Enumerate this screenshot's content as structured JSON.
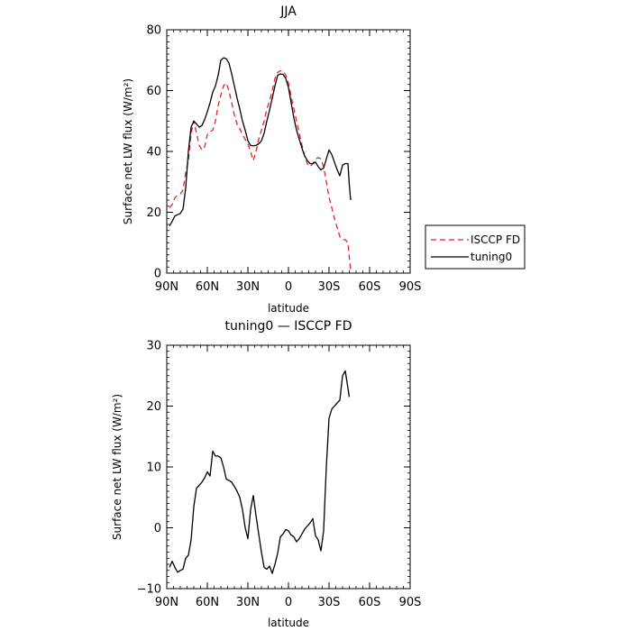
{
  "chart_data": [
    {
      "type": "line",
      "title": "JJA",
      "xlabel": "latitude",
      "ylabel": "Surface net LW flux (W/m²)",
      "xlim": [
        90,
        -90
      ],
      "ylim": [
        0,
        80
      ],
      "x_ticks": [
        90,
        60,
        30,
        0,
        -30,
        -60,
        -90
      ],
      "x_tick_labels": [
        "90N",
        "60N",
        "30N",
        "0",
        "30S",
        "60S",
        "90S"
      ],
      "y_ticks": [
        0,
        20,
        40,
        60,
        80
      ],
      "y_tick_labels": [
        "0",
        "20",
        "40",
        "60",
        "80"
      ],
      "legend": "outside-right",
      "series": [
        {
          "name": "ISCCP FD",
          "color": "#e8202a",
          "dash": "dashed",
          "points": [
            [
              88,
              21.5
            ],
            [
              86,
              22.5
            ],
            [
              84,
              24.8
            ],
            [
              82,
              25.6
            ],
            [
              80,
              26
            ],
            [
              78,
              27.3
            ],
            [
              76,
              33
            ],
            [
              74,
              37
            ],
            [
              72,
              46
            ],
            [
              70,
              50
            ],
            [
              68,
              46
            ],
            [
              66,
              42
            ],
            [
              64,
              40.5
            ],
            [
              62,
              41.5
            ],
            [
              60,
              45.5
            ],
            [
              58,
              46.5
            ],
            [
              56,
              47
            ],
            [
              54,
              50
            ],
            [
              52,
              55
            ],
            [
              50,
              58.5
            ],
            [
              48,
              61.5
            ],
            [
              46,
              62.5
            ],
            [
              44,
              60
            ],
            [
              42,
              56
            ],
            [
              40,
              52
            ],
            [
              38,
              49
            ],
            [
              36,
              47.5
            ],
            [
              34,
              45.5
            ],
            [
              32,
              44
            ],
            [
              30,
              42.5
            ],
            [
              28,
              40
            ],
            [
              26,
              37
            ],
            [
              24,
              40
            ],
            [
              22,
              44
            ],
            [
              20,
              47
            ],
            [
              18,
              50
            ],
            [
              16,
              54
            ],
            [
              14,
              56.5
            ],
            [
              12,
              60
            ],
            [
              10,
              64
            ],
            [
              8,
              66
            ],
            [
              6,
              66.5
            ],
            [
              4,
              66.5
            ],
            [
              2,
              65
            ],
            [
              0,
              62.5
            ],
            [
              -2,
              58
            ],
            [
              -4,
              54
            ],
            [
              -6,
              50
            ],
            [
              -8,
              46
            ],
            [
              -10,
              42
            ],
            [
              -12,
              38.5
            ],
            [
              -14,
              36
            ],
            [
              -16,
              35
            ],
            [
              -18,
              36
            ],
            [
              -20,
              37.5
            ],
            [
              -22,
              38
            ],
            [
              -24,
              37.5
            ],
            [
              -26,
              35
            ],
            [
              -28,
              30
            ],
            [
              -30,
              25
            ],
            [
              -32,
              21.5
            ],
            [
              -34,
              18
            ],
            [
              -36,
              15
            ],
            [
              -38,
              12
            ],
            [
              -40,
              11
            ],
            [
              -42,
              11
            ],
            [
              -44,
              10
            ],
            [
              -45,
              5
            ],
            [
              -46,
              1
            ]
          ]
        },
        {
          "name": "tuning0",
          "color": "#000000",
          "dash": "solid",
          "points": [
            [
              88,
              15.5
            ],
            [
              86,
              17
            ],
            [
              84,
              18.8
            ],
            [
              82,
              19.2
            ],
            [
              80,
              19.6
            ],
            [
              78,
              21
            ],
            [
              76,
              28
            ],
            [
              74,
              40
            ],
            [
              72,
              48
            ],
            [
              70,
              50
            ],
            [
              68,
              49
            ],
            [
              66,
              48
            ],
            [
              64,
              48.5
            ],
            [
              62,
              50.5
            ],
            [
              60,
              53
            ],
            [
              58,
              56
            ],
            [
              56,
              59.5
            ],
            [
              54,
              61.5
            ],
            [
              52,
              65
            ],
            [
              50,
              70
            ],
            [
              48,
              70.8
            ],
            [
              46,
              70.5
            ],
            [
              44,
              69
            ],
            [
              42,
              65.5
            ],
            [
              40,
              61.5
            ],
            [
              38,
              57.5
            ],
            [
              36,
              54
            ],
            [
              34,
              50
            ],
            [
              32,
              47
            ],
            [
              30,
              43.5
            ],
            [
              28,
              42
            ],
            [
              26,
              41.8
            ],
            [
              24,
              42
            ],
            [
              22,
              42.5
            ],
            [
              20,
              43.5
            ],
            [
              18,
              46
            ],
            [
              16,
              50
            ],
            [
              14,
              53.5
            ],
            [
              12,
              57.5
            ],
            [
              10,
              61.5
            ],
            [
              8,
              65
            ],
            [
              6,
              65.5
            ],
            [
              4,
              65.3
            ],
            [
              2,
              64
            ],
            [
              0,
              61
            ],
            [
              -2,
              56
            ],
            [
              -4,
              51
            ],
            [
              -6,
              47
            ],
            [
              -8,
              44
            ],
            [
              -10,
              41
            ],
            [
              -12,
              38.5
            ],
            [
              -14,
              37
            ],
            [
              -16,
              36
            ],
            [
              -18,
              36
            ],
            [
              -20,
              36.5
            ],
            [
              -22,
              35
            ],
            [
              -24,
              34
            ],
            [
              -26,
              34.5
            ],
            [
              -28,
              37.5
            ],
            [
              -30,
              40.5
            ],
            [
              -32,
              39
            ],
            [
              -34,
              36.5
            ],
            [
              -36,
              34
            ],
            [
              -38,
              32
            ],
            [
              -40,
              35.5
            ],
            [
              -42,
              36
            ],
            [
              -44,
              36
            ],
            [
              -45,
              29
            ],
            [
              -46,
              24
            ]
          ]
        }
      ]
    },
    {
      "type": "line",
      "title": "tuning0 — ISCCP FD",
      "xlabel": "latitude",
      "ylabel": "Surface net LW flux (W/m²)",
      "xlim": [
        90,
        -90
      ],
      "ylim": [
        -10,
        30
      ],
      "x_ticks": [
        90,
        60,
        30,
        0,
        -30,
        -60,
        -90
      ],
      "x_tick_labels": [
        "90N",
        "60N",
        "30N",
        "0",
        "30S",
        "60S",
        "90S"
      ],
      "y_ticks": [
        -10,
        0,
        10,
        20,
        30
      ],
      "y_tick_labels": [
        "−10",
        "0",
        "10",
        "20",
        "30"
      ],
      "series": [
        {
          "color": "#000000",
          "dash": "solid",
          "points": [
            [
              88,
              -6.5
            ],
            [
              86,
              -5.5
            ],
            [
              84,
              -6.5
            ],
            [
              82,
              -7.3
            ],
            [
              80,
              -7
            ],
            [
              78,
              -6.8
            ],
            [
              76,
              -5
            ],
            [
              74,
              -4.5
            ],
            [
              72,
              -2
            ],
            [
              70,
              3.5
            ],
            [
              68,
              6.5
            ],
            [
              66,
              7
            ],
            [
              64,
              7.5
            ],
            [
              62,
              8.2
            ],
            [
              60,
              9.2
            ],
            [
              58,
              8.5
            ],
            [
              56,
              12.6
            ],
            [
              54,
              11.8
            ],
            [
              52,
              11.8
            ],
            [
              50,
              11.5
            ],
            [
              48,
              10
            ],
            [
              46,
              8
            ],
            [
              44,
              7.8
            ],
            [
              42,
              7.5
            ],
            [
              40,
              6.8
            ],
            [
              38,
              6
            ],
            [
              36,
              5
            ],
            [
              34,
              3
            ],
            [
              32,
              0
            ],
            [
              30,
              -1.8
            ],
            [
              28,
              3
            ],
            [
              26,
              5.3
            ],
            [
              24,
              2
            ],
            [
              22,
              -1
            ],
            [
              20,
              -4
            ],
            [
              18,
              -6.5
            ],
            [
              16,
              -6.8
            ],
            [
              14,
              -6.3
            ],
            [
              12,
              -7.5
            ],
            [
              10,
              -6
            ],
            [
              8,
              -4.2
            ],
            [
              6,
              -1.5
            ],
            [
              4,
              -1
            ],
            [
              2,
              -0.3
            ],
            [
              0,
              -0.5
            ],
            [
              -2,
              -1.2
            ],
            [
              -4,
              -1.5
            ],
            [
              -6,
              -2.3
            ],
            [
              -8,
              -1.8
            ],
            [
              -10,
              -1
            ],
            [
              -12,
              -0.2
            ],
            [
              -14,
              0.3
            ],
            [
              -16,
              0.8
            ],
            [
              -18,
              1.5
            ],
            [
              -20,
              -1.3
            ],
            [
              -22,
              -2
            ],
            [
              -24,
              -3.8
            ],
            [
              -26,
              -0.5
            ],
            [
              -28,
              10
            ],
            [
              -30,
              18
            ],
            [
              -32,
              19.5
            ],
            [
              -34,
              20
            ],
            [
              -36,
              20.5
            ],
            [
              -38,
              21
            ],
            [
              -40,
              25
            ],
            [
              -42,
              25.8
            ],
            [
              -45,
              21.5
            ]
          ]
        }
      ]
    }
  ]
}
